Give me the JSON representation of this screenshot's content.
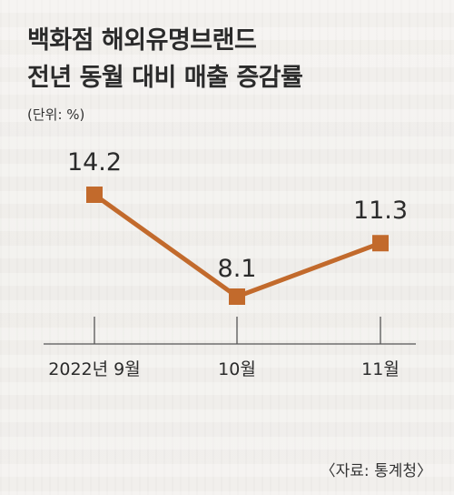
{
  "title_line1": "백화점 해외유명브랜드",
  "title_line2": "전년 동월 대비 매출 증감률",
  "unit": "(단위: %)",
  "source": "〈자료: 통계청〉",
  "colors": {
    "line": "#c26a2c",
    "marker": "#c26a2c",
    "axis": "#555555"
  },
  "chart_data": {
    "type": "line",
    "categories": [
      "2022년 9월",
      "10월",
      "11월"
    ],
    "values": [
      14.2,
      8.1,
      11.3
    ],
    "value_labels": [
      "14.2",
      "8.1",
      "11.3"
    ],
    "title": "백화점 해외유명브랜드 전년 동월 대비 매출 증감률",
    "ylabel": "(단위: %)",
    "grid": false
  }
}
